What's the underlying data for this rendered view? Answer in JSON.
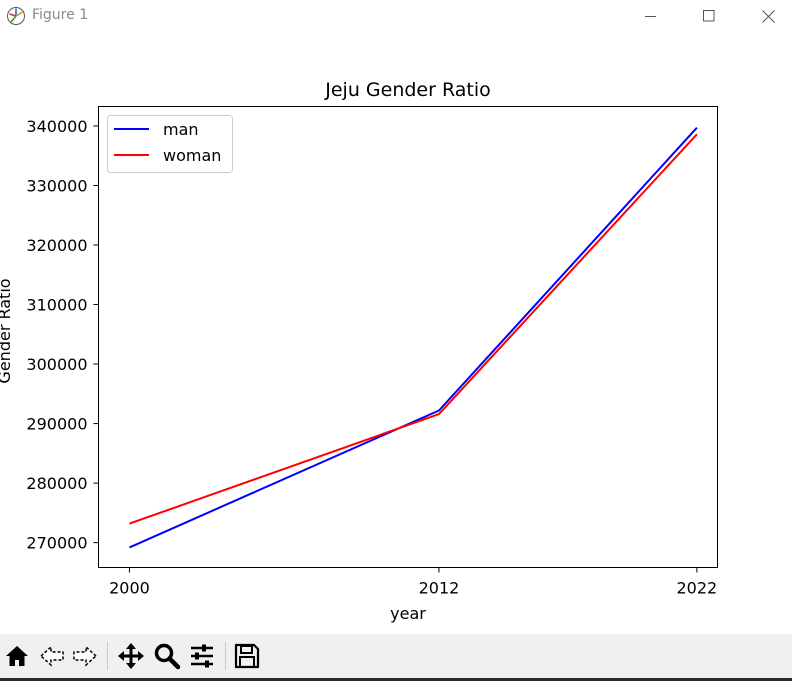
{
  "window": {
    "title": "Figure 1"
  },
  "toolbar": {
    "buttons": [
      "home-icon",
      "back-icon",
      "forward-icon",
      "pan-icon",
      "zoom-icon",
      "configure-subplots-icon",
      "save-icon"
    ]
  },
  "chart_data": {
    "type": "line",
    "title": "Jeju Gender Ratio",
    "xlabel": "year",
    "ylabel": "Gender Ratio",
    "x": [
      2000,
      2012,
      2022
    ],
    "x_tick_labels": [
      "2000",
      "2012",
      "2022"
    ],
    "y_ticks": [
      270000,
      280000,
      290000,
      300000,
      310000,
      320000,
      330000,
      340000
    ],
    "y_tick_labels": [
      "270000",
      "280000",
      "290000",
      "300000",
      "310000",
      "320000",
      "330000",
      "340000"
    ],
    "xlim": [
      1998.8,
      2022.8
    ],
    "ylim": [
      265820,
      343270
    ],
    "grid": false,
    "legend_position": "upper-left",
    "series": [
      {
        "name": "man",
        "color": "#0000ff",
        "values": [
          269200,
          292200,
          339700
        ]
      },
      {
        "name": "woman",
        "color": "#ff0000",
        "values": [
          273200,
          291600,
          338600
        ]
      }
    ]
  }
}
